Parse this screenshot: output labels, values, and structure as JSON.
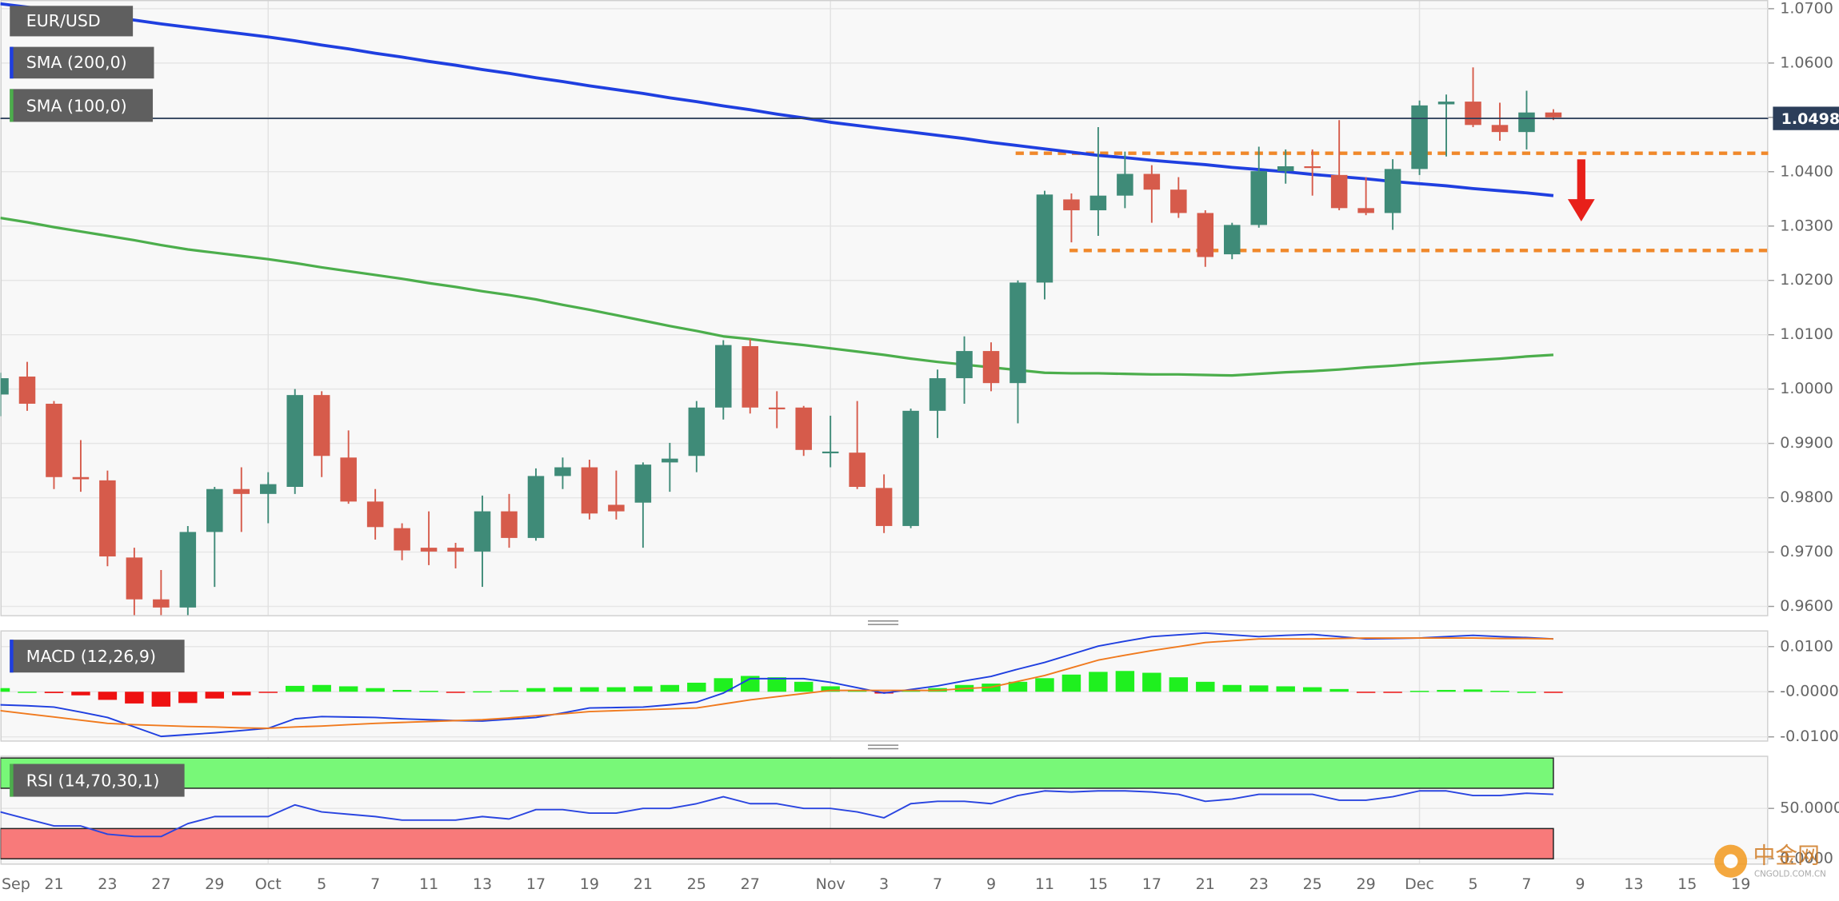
{
  "chart_data": [
    {
      "type": "candlestick",
      "title": "EUR/USD",
      "categories": [
        "Sep",
        null,
        "21",
        null,
        "23",
        null,
        "27",
        null,
        "29",
        null,
        "Oct",
        null,
        "5",
        null,
        "7",
        null,
        "11",
        null,
        "13",
        null,
        "17",
        null,
        "19",
        null,
        "21",
        null,
        "25",
        null,
        "27",
        null,
        null,
        "Nov",
        null,
        "3",
        null,
        "7",
        null,
        "9",
        null,
        "11",
        null,
        "15",
        null,
        "17",
        null,
        "21",
        null,
        "23",
        null,
        "25",
        null,
        "29",
        null,
        "Dec",
        null,
        "5",
        null,
        "7",
        null,
        "9",
        null,
        "13",
        null,
        "15",
        null,
        "19"
      ],
      "open": [
        0.999,
        1.0023,
        0.9973,
        0.9838,
        0.9832,
        0.969,
        0.9613,
        0.9598,
        0.9737,
        0.9816,
        0.9807,
        0.982,
        0.9989,
        0.9874,
        0.9793,
        0.9744,
        0.9708,
        0.9708,
        0.9701,
        0.9775,
        0.9726,
        0.984,
        0.9856,
        0.9787,
        0.9791,
        0.9865,
        0.9877,
        0.9966,
        1.0079,
        0.9966,
        0.9966,
        0.9885,
        0.9883,
        0.9818,
        0.9748,
        0.996,
        1.002,
        1.007,
        1.0011,
        1.0196,
        1.0349,
        1.0329,
        1.0356,
        1.0396,
        1.0367,
        1.0324,
        1.0248,
        1.0302,
        1.0401,
        1.041,
        1.0394,
        1.0333,
        1.0324,
        1.0405,
        1.0524,
        1.0529,
        1.0486,
        1.0473,
        1.0509,
        null,
        null,
        null,
        null,
        null,
        null,
        null
      ],
      "high": [
        1.003,
        1.005,
        0.9978,
        0.9906,
        0.985,
        0.9708,
        0.9667,
        0.9748,
        0.982,
        0.9856,
        0.9847,
        1.0,
        0.9996,
        0.9924,
        0.9816,
        0.9753,
        0.9775,
        0.9717,
        0.9804,
        0.9807,
        0.9854,
        0.9874,
        0.987,
        0.985,
        0.9865,
        0.9901,
        0.9978,
        1.009,
        1.0092,
        0.9996,
        0.9969,
        0.9951,
        0.9978,
        0.9843,
        0.9964,
        1.0036,
        1.0097,
        1.0086,
        1.02,
        1.0365,
        1.036,
        1.0482,
        1.0437,
        1.0412,
        1.039,
        1.0329,
        1.0306,
        1.0446,
        1.0441,
        1.0441,
        1.0495,
        1.039,
        1.0423,
        1.0531,
        1.0542,
        1.0592,
        1.0527,
        1.0549,
        1.0515,
        null,
        null,
        null,
        null,
        null,
        null,
        null
      ],
      "low": [
        0.995,
        0.996,
        0.9816,
        0.9811,
        0.9674,
        0.9555,
        0.9573,
        0.9541,
        0.9636,
        0.9737,
        0.9753,
        0.9807,
        0.9838,
        0.9789,
        0.9723,
        0.9685,
        0.9676,
        0.967,
        0.9636,
        0.9708,
        0.9721,
        0.9816,
        0.976,
        0.976,
        0.9708,
        0.9811,
        0.9847,
        0.9944,
        0.9955,
        0.9928,
        0.9877,
        0.9856,
        0.9816,
        0.9735,
        0.9744,
        0.991,
        0.9973,
        0.9996,
        0.9937,
        1.0165,
        1.027,
        1.0282,
        1.0333,
        1.0306,
        1.0315,
        1.0225,
        1.0239,
        1.0297,
        1.0378,
        1.0356,
        1.0329,
        1.032,
        1.0293,
        1.0394,
        1.0428,
        1.0482,
        1.0457,
        1.0441,
        1.0495,
        null,
        null,
        null,
        null,
        null,
        null,
        null
      ],
      "close": [
        1.002,
        0.9973,
        0.9838,
        0.9834,
        0.9692,
        0.9613,
        0.9598,
        0.9737,
        0.9816,
        0.9807,
        0.9825,
        0.9989,
        0.9877,
        0.9793,
        0.9746,
        0.9703,
        0.9701,
        0.9701,
        0.9775,
        0.9726,
        0.984,
        0.9856,
        0.9771,
        0.9775,
        0.9861,
        0.9872,
        0.9966,
        1.0081,
        0.9966,
        0.9964,
        0.9888,
        0.9885,
        0.982,
        0.9748,
        0.996,
        1.002,
        1.007,
        1.0011,
        1.0196,
        1.0358,
        1.0329,
        1.0356,
        1.0396,
        1.0367,
        1.0324,
        1.0243,
        1.0302,
        1.0401,
        1.041,
        1.0408,
        1.0333,
        1.0324,
        1.0405,
        1.0522,
        1.0529,
        1.0486,
        1.0473,
        1.0509,
        1.05,
        null,
        null,
        null,
        null,
        null,
        null,
        null
      ],
      "up_color": "#3f8b78",
      "down_color": "#d65b4b",
      "series": [
        {
          "name": "SMA (200,0)",
          "color": "#1f3fe0",
          "values": [
            1.0709,
            1.0703,
            1.0697,
            1.0691,
            1.0685,
            1.0679,
            1.0672,
            1.0666,
            1.066,
            1.0654,
            1.0648,
            1.0641,
            1.0633,
            1.0626,
            1.0618,
            1.0611,
            1.0603,
            1.0596,
            1.0588,
            1.0581,
            1.0573,
            1.0566,
            1.0558,
            1.0551,
            1.0544,
            1.0536,
            1.0529,
            1.0521,
            1.0514,
            1.0506,
            1.0499,
            1.0491,
            1.0485,
            1.0479,
            1.0473,
            1.0467,
            1.0461,
            1.0454,
            1.0448,
            1.0442,
            1.0436,
            1.043,
            1.0426,
            1.0421,
            1.0417,
            1.0413,
            1.0408,
            1.0404,
            1.04,
            1.0395,
            1.0391,
            1.0387,
            1.0382,
            1.0378,
            1.0374,
            1.0369,
            1.0365,
            1.0361,
            1.0356,
            null,
            null,
            null,
            null,
            null,
            null,
            null
          ]
        },
        {
          "name": "SMA (100,0)",
          "color": "#4cae4c",
          "values": [
            1.0315,
            1.0307,
            1.0298,
            1.029,
            1.0282,
            1.0274,
            1.0265,
            1.0257,
            1.0251,
            1.0245,
            1.0239,
            1.0232,
            1.0224,
            1.0217,
            1.021,
            1.0203,
            1.0195,
            1.0188,
            1.018,
            1.0173,
            1.0165,
            1.0155,
            1.0146,
            1.0136,
            1.0126,
            1.0116,
            1.0107,
            1.0097,
            1.0092,
            1.0086,
            1.0081,
            1.0075,
            1.0069,
            1.0063,
            1.0056,
            1.005,
            1.0045,
            1.004,
            1.0035,
            1.003,
            1.0029,
            1.0029,
            1.0028,
            1.0027,
            1.0027,
            1.0026,
            1.0025,
            1.0028,
            1.0031,
            1.0033,
            1.0036,
            1.004,
            1.0043,
            1.0047,
            1.005,
            1.0053,
            1.0056,
            1.006,
            1.0063,
            null,
            null,
            null,
            null,
            null,
            null,
            null
          ]
        }
      ],
      "last_price": 1.04981,
      "last_price_color": "#2c3e5a",
      "levels": [
        {
          "value": 1.0434,
          "color": "#f0882a"
        },
        {
          "value": 1.0255,
          "color": "#f0882a"
        }
      ],
      "ylim": [
        0.9584,
        1.0716
      ],
      "yticks": [
        {
          "value": 1.07,
          "label": "1.0700"
        },
        {
          "value": 1.06,
          "label": "1.0600"
        },
        {
          "value": 1.05,
          "label": "1.0500"
        },
        {
          "value": 1.04,
          "label": "1.0400"
        },
        {
          "value": 1.03,
          "label": "1.0300"
        },
        {
          "value": 1.02,
          "label": "1.0200"
        },
        {
          "value": 1.01,
          "label": "1.0100"
        },
        {
          "value": 1.0,
          "label": "1.0000"
        },
        {
          "value": 0.99,
          "label": "0.9900"
        },
        {
          "value": 0.98,
          "label": "0.9800"
        },
        {
          "value": 0.97,
          "label": "0.9700"
        },
        {
          "value": 0.96,
          "label": "0.9600"
        }
      ],
      "grid": true
    },
    {
      "type": "macd",
      "title": "MACD (12,26,9)",
      "histogram": [
        0.0008,
        0.0,
        -0.0003,
        -0.0008,
        -0.0018,
        -0.0026,
        -0.0033,
        -0.0025,
        -0.0015,
        -0.0008,
        -0.0002,
        0.0013,
        0.0015,
        0.0012,
        0.0008,
        0.0004,
        0.0002,
        -0.0001,
        0.0001,
        0.0003,
        0.0008,
        0.001,
        0.001,
        0.001,
        0.0012,
        0.0015,
        0.002,
        0.003,
        0.0035,
        0.0032,
        0.0022,
        0.0012,
        0.0004,
        -0.0004,
        0.0004,
        0.0008,
        0.0015,
        0.0018,
        0.0022,
        0.003,
        0.0038,
        0.0044,
        0.0046,
        0.0042,
        0.0032,
        0.0022,
        0.0015,
        0.0014,
        0.0012,
        0.001,
        0.0006,
        -0.0001,
        -0.0002,
        0.0002,
        0.0004,
        0.0005,
        0.0002,
        0.0,
        -0.0002,
        null,
        null,
        null,
        null,
        null,
        null,
        null
      ],
      "up_color": "#1ff01f",
      "down_color": "#ee1111",
      "series": [
        {
          "color": "#1f3fe0",
          "values": [
            -0.0029,
            -0.0031,
            -0.0034,
            -0.0045,
            -0.0057,
            -0.0078,
            -0.0099,
            -0.0095,
            -0.0091,
            -0.0086,
            -0.0081,
            -0.006,
            -0.0055,
            -0.0056,
            -0.0057,
            -0.006,
            -0.0062,
            -0.0064,
            -0.0065,
            -0.0061,
            -0.0057,
            -0.0047,
            -0.0036,
            -0.0035,
            -0.0034,
            -0.0029,
            -0.0023,
            -0.0003,
            0.0029,
            0.0029,
            0.0029,
            0.0021,
            0.0009,
            -0.0003,
            0.0005,
            0.0013,
            0.0024,
            0.0034,
            0.005,
            0.0065,
            0.0083,
            0.0101,
            0.0112,
            0.0122,
            0.0126,
            0.013,
            0.0126,
            0.0122,
            0.0125,
            0.0127,
            0.0122,
            0.0117,
            0.0118,
            0.0119,
            0.0122,
            0.0125,
            0.0122,
            0.012,
            0.0117,
            null,
            null,
            null,
            null,
            null,
            null,
            null
          ]
        },
        {
          "color": "#f07a1e",
          "values": [
            -0.0042,
            -0.0049,
            -0.0056,
            -0.0063,
            -0.007,
            -0.0073,
            -0.0075,
            -0.0077,
            -0.0078,
            -0.008,
            -0.0081,
            -0.0078,
            -0.0076,
            -0.0073,
            -0.007,
            -0.0068,
            -0.0066,
            -0.0064,
            -0.0062,
            -0.0058,
            -0.0053,
            -0.0049,
            -0.0044,
            -0.0042,
            -0.004,
            -0.0038,
            -0.0036,
            -0.0027,
            -0.0018,
            -0.0011,
            -0.0004,
            0.0003,
            0.0003,
            0.0003,
            0.0003,
            0.0003,
            0.0007,
            0.001,
            0.0023,
            0.0036,
            0.0053,
            0.007,
            0.0081,
            0.0091,
            0.01,
            0.0109,
            0.0113,
            0.0117,
            0.0117,
            0.0117,
            0.0118,
            0.0119,
            0.0119,
            0.0119,
            0.0119,
            0.0119,
            0.0118,
            0.0118,
            0.0117,
            null,
            null,
            null,
            null,
            null,
            null,
            null
          ]
        }
      ],
      "ylim": [
        -0.0108,
        0.0136
      ],
      "yticks": [
        {
          "value": 0.01,
          "label": "0.0100"
        },
        {
          "value": 0,
          "label": "-0.0000"
        },
        {
          "value": -0.01,
          "label": "-0.0100"
        }
      ]
    },
    {
      "type": "line",
      "title": "RSI (14,70,30,1)",
      "bands": [
        {
          "from": 70,
          "to": 100,
          "color": "#78f878"
        },
        {
          "from": 0,
          "to": 30,
          "color": "#f87a7a"
        }
      ],
      "series": [
        {
          "color": "#2a45e0",
          "values": [
            46.5,
            39.5,
            32.6,
            32.6,
            24.4,
            22.1,
            22.1,
            34.9,
            41.9,
            41.9,
            41.9,
            53.5,
            46.5,
            44.2,
            41.9,
            38.4,
            38.4,
            38.4,
            41.9,
            39.5,
            48.8,
            48.8,
            45.3,
            45.3,
            50.0,
            50.0,
            54.7,
            61.6,
            54.7,
            54.7,
            50.0,
            50.0,
            46.5,
            40.7,
            54.7,
            57.0,
            57.0,
            54.7,
            62.8,
            67.4,
            66.3,
            67.4,
            67.4,
            66.3,
            64.0,
            57.0,
            59.3,
            64.0,
            64.0,
            64.0,
            58.1,
            58.1,
            61.6,
            67.4,
            67.4,
            62.8,
            62.8,
            65.1,
            64.0,
            null,
            null,
            null,
            null,
            null,
            null,
            null
          ]
        }
      ],
      "ylim": [
        -4.7,
        102.3
      ],
      "yticks": [
        {
          "value": 50,
          "label": "50.0000"
        },
        {
          "value": 0,
          "label": "0.0000"
        }
      ]
    }
  ],
  "watermark": {
    "name": "中金网",
    "site": "CNGOLD.COM.CN"
  }
}
